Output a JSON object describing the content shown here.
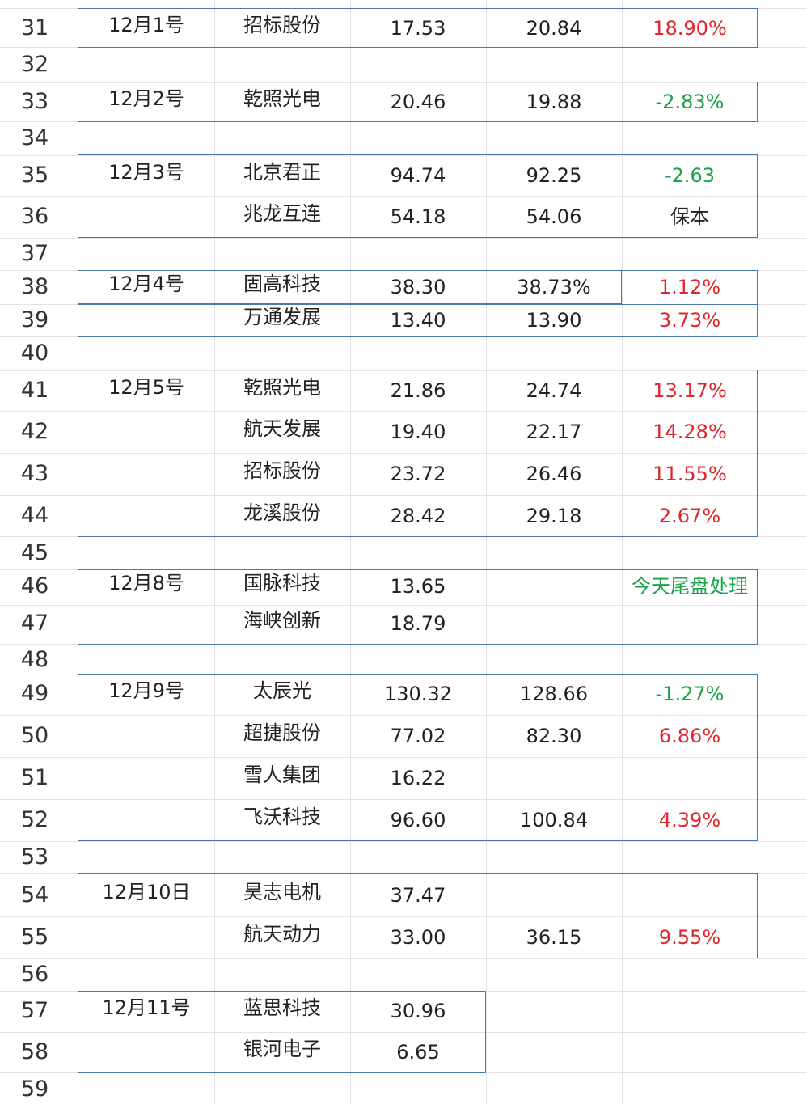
{
  "row_numbers": [
    "31",
    "32",
    "33",
    "34",
    "35",
    "36",
    "37",
    "38",
    "39",
    "40",
    "41",
    "42",
    "43",
    "44",
    "45",
    "46",
    "47",
    "48",
    "49",
    "50",
    "51",
    "52",
    "53",
    "54",
    "55",
    "56",
    "57",
    "58",
    "59"
  ],
  "rows": [
    {
      "n": "31",
      "date": "12月1号",
      "name": "招标股份",
      "buy": "17.53",
      "price": "20.84",
      "pct": "18.90%",
      "pct_color": "red"
    },
    {
      "n": "33",
      "date": "12月2号",
      "name": "乾照光电",
      "buy": "20.46",
      "price": "19.88",
      "pct": "-2.83%",
      "pct_color": "green"
    },
    {
      "n": "35",
      "date": "12月3号",
      "name": "北京君正",
      "buy": "94.74",
      "price": "92.25",
      "pct": "-2.63",
      "pct_color": "green"
    },
    {
      "n": "36",
      "date": "",
      "name": "兆龙互连",
      "buy": "54.18",
      "price": "54.06",
      "pct": "保本",
      "pct_color": "black"
    },
    {
      "n": "38",
      "date": "12月4号",
      "name": "固高科技",
      "buy": "38.30",
      "price": "38.73%",
      "pct": "1.12%",
      "pct_color": "red"
    },
    {
      "n": "39",
      "date": "",
      "name": "万通发展",
      "buy": "13.40",
      "price": "13.90",
      "pct": "3.73%",
      "pct_color": "red"
    },
    {
      "n": "41",
      "date": "12月5号",
      "name": "乾照光电",
      "buy": "21.86",
      "price": "24.74",
      "pct": "13.17%",
      "pct_color": "red"
    },
    {
      "n": "42",
      "date": "",
      "name": "航天发展",
      "buy": "19.40",
      "price": "22.17",
      "pct": "14.28%",
      "pct_color": "red"
    },
    {
      "n": "43",
      "date": "",
      "name": "招标股份",
      "buy": "23.72",
      "price": "26.46",
      "pct": "11.55%",
      "pct_color": "red"
    },
    {
      "n": "44",
      "date": "",
      "name": "龙溪股份",
      "buy": "28.42",
      "price": "29.18",
      "pct": "2.67%",
      "pct_color": "red"
    },
    {
      "n": "46",
      "date": "12月8号",
      "name": "国脉科技",
      "buy": "13.65",
      "price": "",
      "pct": "今天尾盘处理",
      "pct_color": "green"
    },
    {
      "n": "47",
      "date": "",
      "name": "海峡创新",
      "buy": "18.79",
      "price": "",
      "pct": "",
      "pct_color": "black"
    },
    {
      "n": "49",
      "date": "12月9号",
      "name": "太辰光",
      "buy": "130.32",
      "price": "128.66",
      "pct": "-1.27%",
      "pct_color": "green"
    },
    {
      "n": "50",
      "date": "",
      "name": "超捷股份",
      "buy": "77.02",
      "price": "82.30",
      "pct": "6.86%",
      "pct_color": "red"
    },
    {
      "n": "51",
      "date": "",
      "name": "雪人集团",
      "buy": "16.22",
      "price": "",
      "pct": "",
      "pct_color": "black"
    },
    {
      "n": "52",
      "date": "",
      "name": "飞沃科技",
      "buy": "96.60",
      "price": "100.84",
      "pct": "4.39%",
      "pct_color": "red"
    },
    {
      "n": "54",
      "date": "12月10日",
      "name": "昊志电机",
      "buy": "37.47",
      "price": "",
      "pct": "",
      "pct_color": "black"
    },
    {
      "n": "55",
      "date": "",
      "name": "航天动力",
      "buy": "33.00",
      "price": "36.15",
      "pct": "9.55%",
      "pct_color": "red"
    },
    {
      "n": "57",
      "date": "12月11号",
      "name": "蓝思科技",
      "buy": "30.96",
      "price": "",
      "pct": "",
      "pct_color": "black"
    },
    {
      "n": "58",
      "date": "",
      "name": "银河电子",
      "buy": "6.65",
      "price": "",
      "pct": "",
      "pct_color": "black"
    }
  ],
  "colors": {
    "red": "#e0262b",
    "green": "#1aa34a",
    "border": "#4a78a8",
    "grid": "#e3e3e3"
  }
}
